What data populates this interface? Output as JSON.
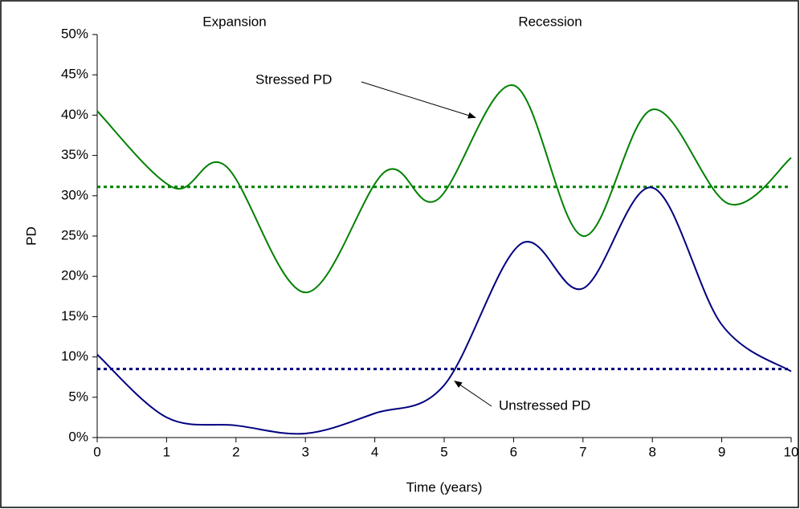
{
  "chart_data": {
    "type": "line",
    "x_label": "Time (years)",
    "y_label": "PD",
    "annotations": [
      "Expansion",
      "Recession"
    ],
    "series": [
      {
        "name": "Stressed PD",
        "color": "#008000",
        "x": [
          0,
          1.1,
          1.85,
          3,
          4.15,
          4.9,
          6,
          7,
          8,
          9.1,
          10
        ],
        "values": [
          40.5,
          31,
          33.7,
          18,
          33,
          29.5,
          43.7,
          25,
          40.7,
          29,
          34.7
        ]
      },
      {
        "name": "Unstressed PD",
        "color": "#000080",
        "x": [
          0,
          1,
          2,
          3,
          4,
          5,
          6.1,
          7,
          8,
          9,
          10
        ],
        "values": [
          10.3,
          2.5,
          1.5,
          0.5,
          3,
          6.5,
          24,
          18.5,
          31,
          14,
          8.2
        ]
      }
    ],
    "reference_lines": [
      {
        "value": 31.1,
        "color": "#008000"
      },
      {
        "value": 8.5,
        "color": "#000080"
      }
    ],
    "xlim": [
      0,
      10
    ],
    "xticks": [
      0,
      1,
      2,
      3,
      4,
      5,
      6,
      7,
      8,
      9,
      10
    ],
    "ylim": [
      0,
      50
    ],
    "yticks": [
      {
        "value": 0,
        "label": "0%"
      },
      {
        "value": 5,
        "label": "5%"
      },
      {
        "value": 10,
        "label": "10%"
      },
      {
        "value": 15,
        "label": "15%"
      },
      {
        "value": 20,
        "label": "20%"
      },
      {
        "value": 25,
        "label": "25%"
      },
      {
        "value": 30,
        "label": "30%"
      },
      {
        "value": 35,
        "label": "35%"
      },
      {
        "value": 40,
        "label": "40%"
      },
      {
        "value": 45,
        "label": "45%"
      },
      {
        "value": 50,
        "label": "50%"
      }
    ]
  }
}
